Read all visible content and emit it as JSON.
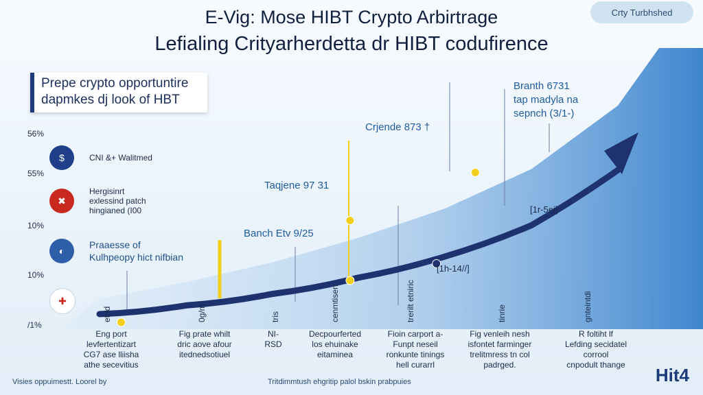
{
  "header": {
    "title_line1": "E-Vig: Mose HIBT Crypto Arbirtrage",
    "title_line2": "Lefialing Crityarherdetta dr HIBT codufirence",
    "badge": "Crty Turbhshed"
  },
  "callout": {
    "line1": "Prepe crypto opportuntire",
    "line2": "dapmkes dj look of HBT"
  },
  "legend": [
    {
      "icon": "shield-icon",
      "color": "#1f3f8a",
      "glyph": "$",
      "text": [
        "CNI &+ Walitmed"
      ],
      "style": "small"
    },
    {
      "icon": "flag-icon",
      "color": "#c8281e",
      "glyph": "✖",
      "text": [
        "Hergisinrt",
        "exlessind patch",
        "hingianed (I00"
      ],
      "style": "small"
    },
    {
      "icon": "globe-icon",
      "color": "#2d5ea8",
      "glyph": "◐",
      "text": [
        "Praaesse of",
        "Kulhpeopy hict nifbian"
      ],
      "style": "big"
    },
    {
      "icon": "uk-flag-icon",
      "color": "#ffffff",
      "glyph": "✚",
      "text": [],
      "style": "small"
    }
  ],
  "annotations": {
    "crjende": "Crjende 873 †",
    "branth": [
      "Branth 6731",
      "tap madyla na",
      "sepnch (3/1-)"
    ],
    "taqjene": "Taqjene 97 31",
    "banch": "Banch Etv 9/25",
    "range_upper": "[1r-5ej]",
    "range_lower": "[1h-14//]"
  },
  "footer": {
    "left": "Visies oppuimestt. Loorel by",
    "center": "Tritdimmtush ehgritip palol bskin prabpuies",
    "brand": "Hit4"
  },
  "captions": [
    [
      "Eng port",
      "levfertentizart",
      "CG7 ase lliisha",
      "athe secevitius"
    ],
    [
      "Fig prate whilt",
      "dric aove afour",
      "itednedsotiuel"
    ],
    [
      "NI-",
      "RSD"
    ],
    [
      "Decpourferted",
      "los ehuinake",
      "eitaminea"
    ],
    [
      "Fioin carport a-",
      "Funpt neseil",
      "ronkunte tinings",
      "hell curarrl"
    ],
    [
      "Fig venleih nesh",
      "isfontet farminger",
      "trelitmress tn col",
      "padrged."
    ],
    [
      "R foltiht lf",
      "Lefding secidatel",
      "corrool",
      "cnpodult thange"
    ]
  ],
  "chart_data": {
    "type": "line",
    "title": "",
    "xlabel": "",
    "ylabel": "",
    "y_tick_labels": [
      "56%",
      "55%",
      "10%",
      "10%",
      "/1%"
    ],
    "x_tick_labels": [
      "etrid",
      "0g/m",
      "tris",
      "cenmtisen",
      "trerilt etniric",
      "tinrie",
      "gnteintdi"
    ],
    "ylim": [
      0,
      4
    ],
    "xlim": [
      0,
      6
    ],
    "series": [
      {
        "x": [
          0,
          1,
          2,
          3,
          4,
          5,
          6
        ],
        "values": [
          0.1,
          0.28,
          0.52,
          0.86,
          1.3,
          1.95,
          3.1
        ]
      }
    ],
    "highlight_points": [
      {
        "x": 0.25,
        "y": 0.0,
        "color": "#f3cf1c"
      },
      {
        "x": 2.9,
        "y": 0.8,
        "color": "#f3cf1c"
      },
      {
        "x": 2.9,
        "y": 2.05,
        "color": "#f3cf1c"
      },
      {
        "x": 4.35,
        "y": 3.05,
        "color": "#f3cf1c"
      },
      {
        "x": 3.9,
        "y": 1.15,
        "color": "#1e3270"
      }
    ],
    "grid": false,
    "colors": {
      "line": "#1e3270",
      "area": "#5b97d3",
      "marker": "#f3cf1c"
    }
  }
}
